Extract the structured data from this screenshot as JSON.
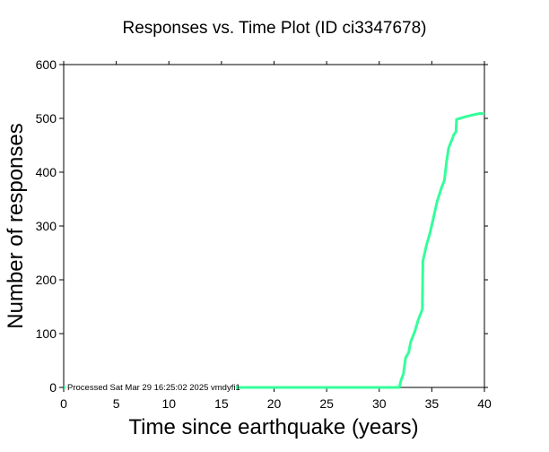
{
  "chart_data": {
    "type": "line",
    "title": "Responses vs. Time Plot (ID ci3347678)",
    "xlabel": "Time since earthquake (years)",
    "ylabel": "Number of responses",
    "xlim": [
      0,
      40
    ],
    "ylim": [
      0,
      600
    ],
    "xticks": [
      "0",
      "5",
      "10",
      "15",
      "20",
      "25",
      "30",
      "35",
      "40"
    ],
    "yticks": [
      "0",
      "100",
      "200",
      "300",
      "400",
      "500",
      "600"
    ],
    "grid": false,
    "annotation": "Processed Sat Mar 29 16:25:02 2025 vmdyfi1",
    "series": [
      {
        "name": "responses",
        "color": "#33ff99",
        "x": [
          0,
          31.9,
          32.1,
          32.3,
          32.5,
          32.8,
          33.0,
          33.4,
          33.7,
          34.1,
          34.15,
          34.5,
          34.8,
          35.1,
          35.5,
          35.9,
          36.2,
          36.4,
          36.6,
          36.9,
          37.1,
          37.3,
          37.35,
          38.0,
          38.8,
          39.5,
          40.0
        ],
        "y": [
          0,
          0,
          15,
          25,
          55,
          65,
          85,
          105,
          125,
          145,
          235,
          265,
          285,
          310,
          345,
          370,
          385,
          420,
          445,
          460,
          470,
          475,
          498,
          502,
          506,
          509,
          509
        ]
      }
    ]
  }
}
